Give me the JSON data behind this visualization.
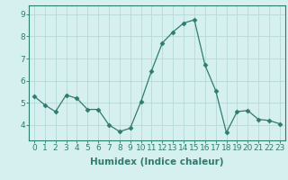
{
  "x": [
    0,
    1,
    2,
    3,
    4,
    5,
    6,
    7,
    8,
    9,
    10,
    11,
    12,
    13,
    14,
    15,
    16,
    17,
    18,
    19,
    20,
    21,
    22,
    23
  ],
  "y": [
    5.3,
    4.9,
    4.6,
    5.35,
    5.2,
    4.7,
    4.7,
    4.0,
    3.7,
    3.85,
    5.05,
    6.45,
    7.7,
    8.2,
    8.6,
    8.75,
    6.7,
    5.55,
    3.65,
    4.6,
    4.65,
    4.25,
    4.2,
    4.05
  ],
  "line_color": "#2d7d6e",
  "marker": "D",
  "marker_size": 2.5,
  "bg_color": "#d6f0ef",
  "grid_color": "#b8d8d8",
  "axis_color": "#2d7d6e",
  "xlabel": "Humidex (Indice chaleur)",
  "ylim": [
    3.3,
    9.4
  ],
  "xlim": [
    -0.5,
    23.5
  ],
  "yticks": [
    4,
    5,
    6,
    7,
    8,
    9
  ],
  "xticks": [
    0,
    1,
    2,
    3,
    4,
    5,
    6,
    7,
    8,
    9,
    10,
    11,
    12,
    13,
    14,
    15,
    16,
    17,
    18,
    19,
    20,
    21,
    22,
    23
  ],
  "xtick_labels": [
    "0",
    "1",
    "2",
    "3",
    "4",
    "5",
    "6",
    "7",
    "8",
    "9",
    "10",
    "11",
    "12",
    "13",
    "14",
    "15",
    "16",
    "17",
    "18",
    "19",
    "20",
    "21",
    "22",
    "23"
  ],
  "tick_color": "#2d7d6e",
  "label_fontsize": 7.5,
  "tick_fontsize": 6.5
}
